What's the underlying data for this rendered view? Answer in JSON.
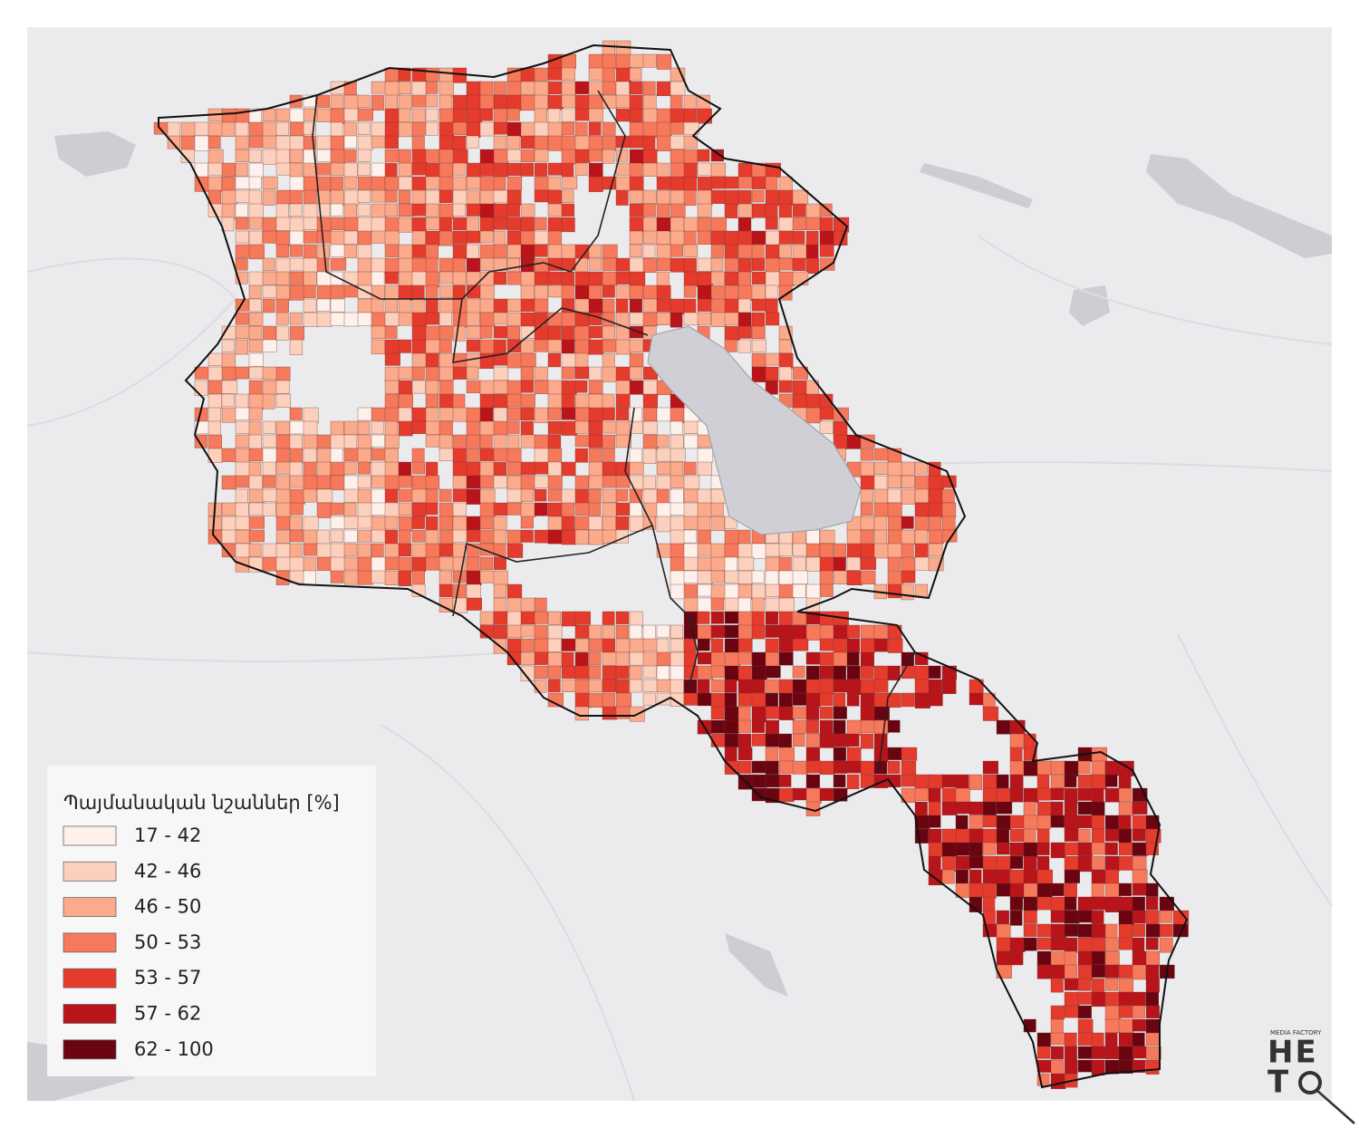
{
  "legend": {
    "title": "Պայմանական նշաններ [%]",
    "items": [
      {
        "label": "17 - 42",
        "color": "#fef0eb"
      },
      {
        "label": "42 - 46",
        "color": "#fcd0bd"
      },
      {
        "label": "46 - 50",
        "color": "#fbaa8c"
      },
      {
        "label": "50 - 53",
        "color": "#f7795c"
      },
      {
        "label": "53 - 57",
        "color": "#e53b2d"
      },
      {
        "label": "57 - 62",
        "color": "#b8141a"
      },
      {
        "label": "62 - 100",
        "color": "#6a0410"
      }
    ]
  },
  "logo": {
    "tagline": "MEDIA FACTORY",
    "top": "HE",
    "bottom": "T"
  }
}
